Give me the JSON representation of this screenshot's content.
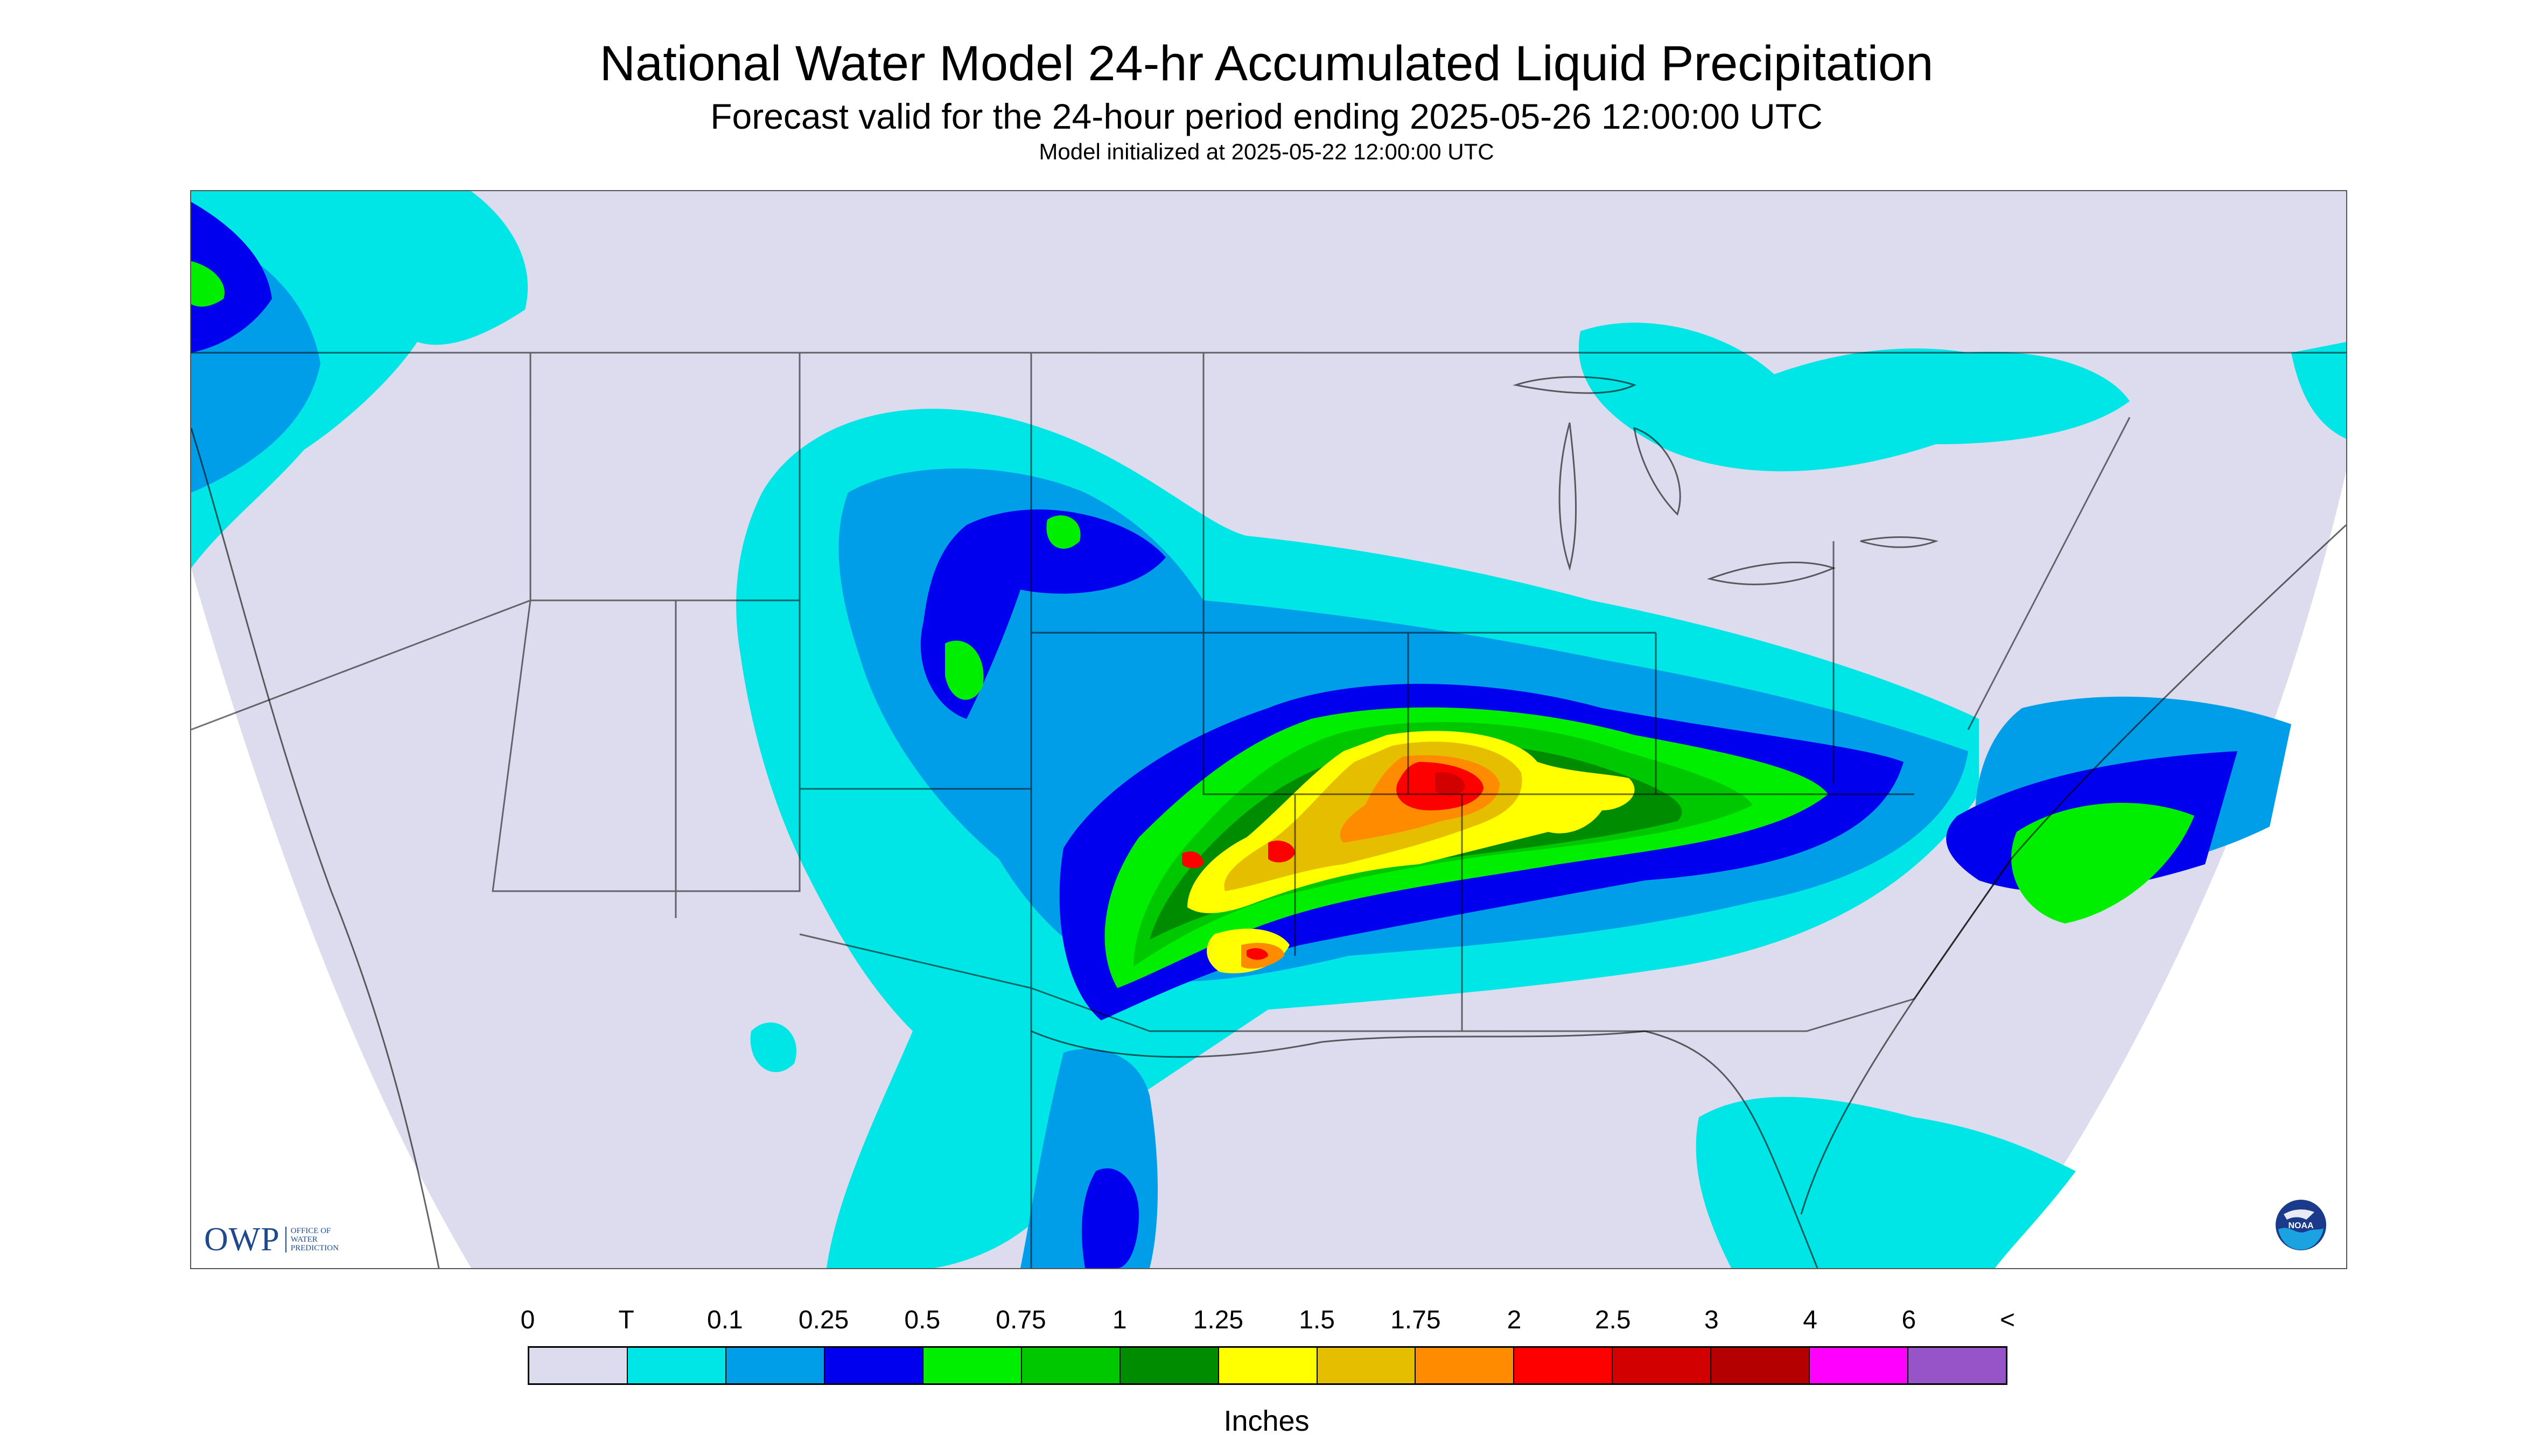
{
  "title": "National Water Model 24-hr Accumulated Liquid Precipitation",
  "subtitle": "Forecast valid for the 24-hour period ending 2025-05-26 12:00:00 UTC",
  "init_line": "Model initialized at 2025-05-22 12:00:00 UTC",
  "logos": {
    "owp": "OWP",
    "owp_sub": [
      "OFFICE OF",
      "WATER",
      "PREDICTION"
    ],
    "noaa": "NOAA"
  },
  "legend": {
    "unit": "Inches",
    "ticks": [
      "0",
      "T",
      "0.1",
      "0.25",
      "0.5",
      "0.75",
      "1",
      "1.25",
      "1.5",
      "1.75",
      "2",
      "2.5",
      "3",
      "4",
      "6",
      "<"
    ],
    "colors": [
      "#dcdcee",
      "#00e5e5",
      "#009ee8",
      "#0000ee",
      "#00ee00",
      "#00c800",
      "#008c00",
      "#ffff00",
      "#e6be00",
      "#ff8c00",
      "#ff0000",
      "#d20000",
      "#b40000",
      "#ff00ff",
      "#9654c8"
    ]
  },
  "colors": {
    "no_data": "#ffffff",
    "boundary": "#000000"
  }
}
